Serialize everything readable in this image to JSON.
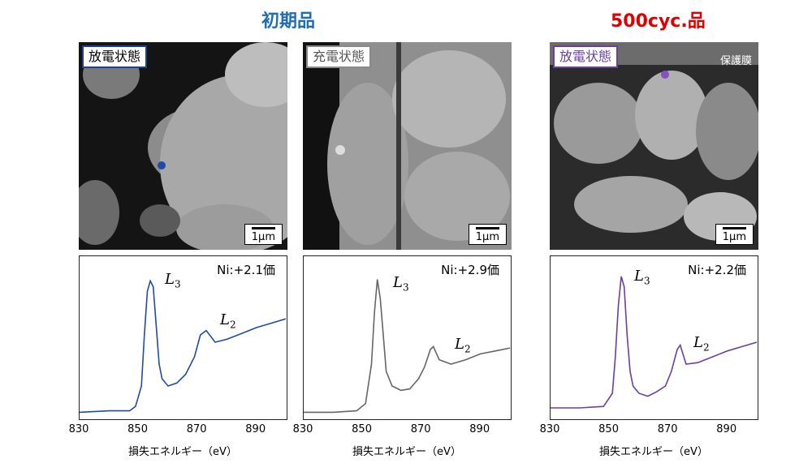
{
  "titles": {
    "initial": "初期品",
    "initial_color": "#1f6db5",
    "cycled": "500cyc.品",
    "cycled_color": "#e00000"
  },
  "panels": [
    {
      "state_label": "放電状態",
      "state_color": "#1f3f8f",
      "scale_label": "1μm",
      "marker_color": "#1f4aa8",
      "ni_label": "Ni:+2.1価",
      "l3_label": "L",
      "l3_sub": "3",
      "l2_label": "L",
      "l2_sub": "2",
      "line_color": "#1f4aa8"
    },
    {
      "state_label": "充電状態",
      "state_color": "#8a8a8a",
      "scale_label": "1μm",
      "marker_color": "#dddddd",
      "ni_label": "Ni:+2.9価",
      "l3_label": "L",
      "l3_sub": "3",
      "l2_label": "L",
      "l2_sub": "2",
      "line_color": "#666666"
    },
    {
      "state_label": "放電状態",
      "state_color": "#6a3fa0",
      "scale_label": "1μm",
      "marker_color": "#8a4fc0",
      "protective_label": "保護膜",
      "ni_label": "Ni:+2.2価",
      "l3_label": "L",
      "l3_sub": "3",
      "l2_label": "L",
      "l2_sub": "2",
      "line_color": "#6a3fa0"
    }
  ],
  "x_ticks": [
    "830",
    "850",
    "870",
    "890"
  ],
  "x_axis_label": "損失エネルギー（eV）",
  "chart_data": [
    {
      "type": "line",
      "name": "Ni:+2.1価",
      "xlim": [
        830,
        900
      ],
      "x": [
        830,
        840,
        847,
        849,
        851,
        852,
        853,
        854,
        855,
        856,
        857,
        858,
        860,
        863,
        866,
        869,
        871,
        873,
        876,
        880,
        885,
        890,
        895,
        900
      ],
      "y": [
        0.02,
        0.03,
        0.03,
        0.06,
        0.2,
        0.55,
        0.85,
        0.92,
        0.88,
        0.62,
        0.35,
        0.25,
        0.2,
        0.22,
        0.28,
        0.4,
        0.55,
        0.58,
        0.5,
        0.52,
        0.56,
        0.6,
        0.63,
        0.66
      ]
    },
    {
      "type": "line",
      "name": "Ni:+2.9価",
      "xlim": [
        830,
        900
      ],
      "x": [
        830,
        840,
        848,
        851,
        853,
        854,
        855,
        856,
        857,
        858,
        860,
        863,
        866,
        869,
        871,
        873,
        874,
        876,
        880,
        885,
        890,
        895,
        900
      ],
      "y": [
        0.02,
        0.02,
        0.03,
        0.08,
        0.35,
        0.7,
        0.93,
        0.8,
        0.55,
        0.3,
        0.2,
        0.17,
        0.18,
        0.25,
        0.33,
        0.45,
        0.47,
        0.38,
        0.35,
        0.38,
        0.42,
        0.44,
        0.46
      ]
    },
    {
      "type": "line",
      "name": "Ni:+2.2価",
      "xlim": [
        830,
        900
      ],
      "x": [
        830,
        840,
        848,
        851,
        852,
        853,
        854,
        855,
        856,
        857,
        858,
        860,
        863,
        866,
        869,
        871,
        873,
        874,
        876,
        880,
        885,
        890,
        895,
        900
      ],
      "y": [
        0.05,
        0.05,
        0.06,
        0.15,
        0.4,
        0.75,
        0.95,
        0.88,
        0.55,
        0.3,
        0.2,
        0.15,
        0.13,
        0.16,
        0.2,
        0.3,
        0.45,
        0.48,
        0.35,
        0.36,
        0.4,
        0.44,
        0.47,
        0.5
      ]
    }
  ]
}
